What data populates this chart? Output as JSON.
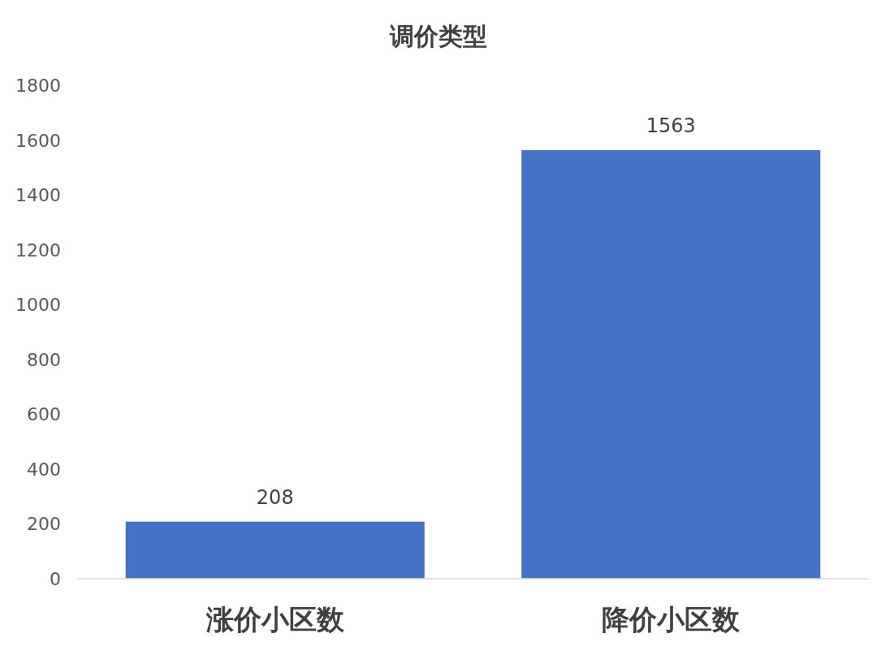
{
  "chart_data": {
    "type": "bar",
    "title": "调价类型",
    "categories": [
      "涨价小区数",
      "降价小区数"
    ],
    "values": [
      208,
      1563
    ],
    "color": "#4472c4",
    "ylim": [
      0,
      1800
    ],
    "yticks": [
      0,
      200,
      400,
      600,
      800,
      1000,
      1200,
      1400,
      1600,
      1800
    ],
    "data_labels": true
  }
}
